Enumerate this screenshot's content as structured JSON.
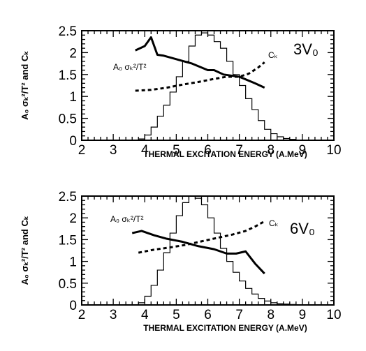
{
  "chart_data": [
    {
      "type": "line",
      "panel_tag": "3V₀",
      "xlabel": "THERMAL EXCITATION ENERGY (A.MeV)",
      "ylabel": "A₀ σₖ²/T² and Cₖ",
      "xlim": [
        2,
        10
      ],
      "ylim": [
        0,
        2.5
      ],
      "xticks": [
        "2",
        "3",
        "4",
        "5",
        "6",
        "7",
        "8",
        "9",
        "10"
      ],
      "yticks": [
        "0",
        "0.5",
        "1",
        "1.5",
        "2",
        "2.5"
      ],
      "series": [
        {
          "label": "A₀ σₖ²/T²",
          "style": "solid",
          "x": [
            3.7,
            4.0,
            4.2,
            4.4,
            4.6,
            5.0,
            5.5,
            6.0,
            6.2,
            6.5,
            7.0,
            7.5,
            7.8
          ],
          "y": [
            2.05,
            2.15,
            2.35,
            1.95,
            1.93,
            1.85,
            1.75,
            1.6,
            1.6,
            1.5,
            1.45,
            1.3,
            1.2
          ]
        },
        {
          "label": "Cₖ",
          "style": "dashed",
          "x": [
            3.7,
            4.2,
            4.7,
            5.2,
            5.7,
            6.2,
            6.6,
            7.0,
            7.3,
            7.6,
            7.8
          ],
          "y": [
            1.13,
            1.15,
            1.2,
            1.27,
            1.33,
            1.4,
            1.45,
            1.45,
            1.52,
            1.66,
            1.78
          ]
        },
        {
          "label": "histogram",
          "style": "step",
          "x": [
            3.6,
            3.8,
            4.0,
            4.2,
            4.4,
            4.6,
            4.8,
            5.0,
            5.2,
            5.4,
            5.6,
            5.8,
            6.0,
            6.2,
            6.4,
            6.6,
            6.8,
            7.0,
            7.2,
            7.4,
            7.6,
            7.8,
            8.0,
            8.2,
            8.4,
            8.6,
            8.8
          ],
          "y": [
            0.0,
            0.03,
            0.12,
            0.3,
            0.55,
            0.8,
            1.1,
            1.45,
            1.8,
            2.15,
            2.4,
            2.45,
            2.4,
            2.25,
            2.1,
            1.8,
            1.5,
            1.25,
            0.95,
            0.7,
            0.45,
            0.25,
            0.15,
            0.08,
            0.04,
            0.02,
            0.0
          ]
        }
      ]
    },
    {
      "type": "line",
      "panel_tag": "6V₀",
      "xlabel": "THERMAL EXCITATION ENERGY (A.MeV)",
      "ylabel": "A₀ σₖ²/T² and Cₖ",
      "xlim": [
        2,
        10
      ],
      "ylim": [
        0,
        2.5
      ],
      "xticks": [
        "2",
        "3",
        "4",
        "5",
        "6",
        "7",
        "8",
        "9",
        "10"
      ],
      "yticks": [
        "0",
        "0.5",
        "1",
        "1.5",
        "2",
        "2.5"
      ],
      "series": [
        {
          "label": "A₀ σₖ²/T²",
          "style": "solid",
          "x": [
            3.6,
            3.9,
            4.3,
            4.7,
            5.2,
            5.7,
            6.2,
            6.6,
            6.9,
            7.2,
            7.5,
            7.8
          ],
          "y": [
            1.65,
            1.7,
            1.6,
            1.52,
            1.45,
            1.35,
            1.28,
            1.18,
            1.18,
            1.23,
            0.95,
            0.72
          ]
        },
        {
          "label": "Cₖ",
          "style": "dashed",
          "x": [
            3.8,
            4.3,
            4.8,
            5.3,
            5.8,
            6.3,
            6.8,
            7.2,
            7.5,
            7.8
          ],
          "y": [
            1.2,
            1.27,
            1.32,
            1.38,
            1.46,
            1.54,
            1.62,
            1.7,
            1.8,
            1.92
          ]
        },
        {
          "label": "histogram",
          "style": "step",
          "x": [
            3.6,
            3.8,
            4.0,
            4.2,
            4.4,
            4.6,
            4.8,
            5.0,
            5.2,
            5.4,
            5.6,
            5.8,
            6.0,
            6.2,
            6.4,
            6.6,
            6.8,
            7.0,
            7.2,
            7.4,
            7.6,
            7.8,
            8.0,
            8.2,
            8.4,
            8.6,
            8.8
          ],
          "y": [
            0.0,
            0.05,
            0.2,
            0.45,
            0.8,
            1.2,
            1.65,
            2.05,
            2.35,
            2.5,
            2.45,
            2.3,
            2.0,
            1.65,
            1.3,
            1.0,
            0.75,
            0.55,
            0.38,
            0.25,
            0.15,
            0.09,
            0.05,
            0.03,
            0.02,
            0.01,
            0.0
          ]
        }
      ]
    }
  ],
  "annotations": [
    {
      "text_main": "A₀ σₖ²/T²",
      "text_c": "Cₖ"
    },
    {
      "text_main": "A₀ σₖ²/T²",
      "text_c": "Cₖ"
    }
  ]
}
